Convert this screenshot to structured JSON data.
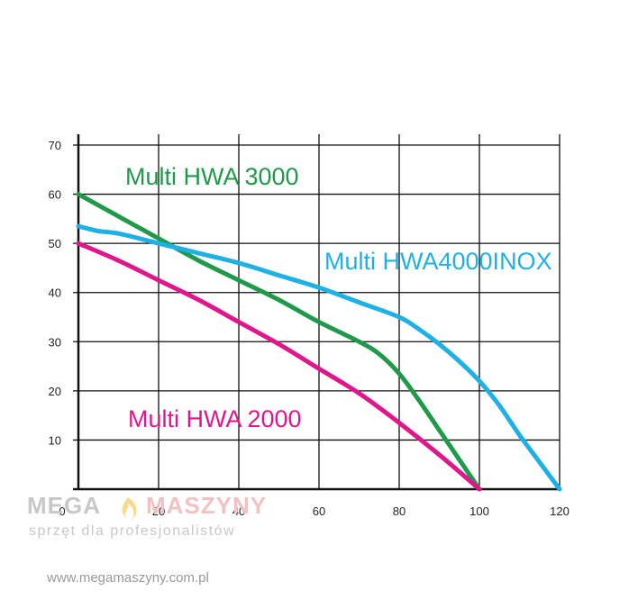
{
  "chart_data": {
    "type": "line",
    "title": "",
    "xlabel": "",
    "ylabel": "",
    "xlim": [
      0,
      120
    ],
    "ylim": [
      0,
      70
    ],
    "x_ticks": [
      0,
      20,
      40,
      60,
      80,
      100,
      120
    ],
    "y_ticks": [
      10,
      20,
      30,
      40,
      50,
      60,
      70
    ],
    "grid": true,
    "legend": "inline labels",
    "series": [
      {
        "name": "Multi HWA 3000",
        "color": "#1f9a4a",
        "x": [
          0,
          10,
          20,
          30,
          40,
          50,
          60,
          70,
          75,
          80,
          85,
          90,
          95,
          100
        ],
        "y": [
          60,
          55.5,
          51,
          46.5,
          42.5,
          38.5,
          34,
          30,
          27.5,
          23.5,
          18,
          12,
          6,
          0
        ]
      },
      {
        "name": "Multi HWA4000INOX",
        "color": "#1fb0e6",
        "x": [
          0,
          5,
          10,
          20,
          30,
          40,
          50,
          60,
          70,
          80,
          85,
          90,
          95,
          100,
          105,
          110,
          115,
          120
        ],
        "y": [
          53.5,
          52.5,
          52,
          50,
          48,
          46,
          43.5,
          41,
          38,
          35,
          32.5,
          29.5,
          26,
          22,
          17,
          11,
          5.5,
          0
        ]
      },
      {
        "name": "Multi HWA 2000",
        "color": "#e0168a",
        "x": [
          0,
          10,
          20,
          30,
          40,
          50,
          60,
          70,
          80,
          90,
          100
        ],
        "y": [
          50,
          46.5,
          42.5,
          38.5,
          34,
          29.5,
          24.5,
          19.5,
          13.5,
          7,
          0
        ]
      }
    ]
  },
  "watermark": {
    "brand_a": "MEGA",
    "brand_b": "MASZYNY",
    "tagline": "sprzęt dla profesjonalistów",
    "url": "www.megamaszyny.com.pl"
  }
}
